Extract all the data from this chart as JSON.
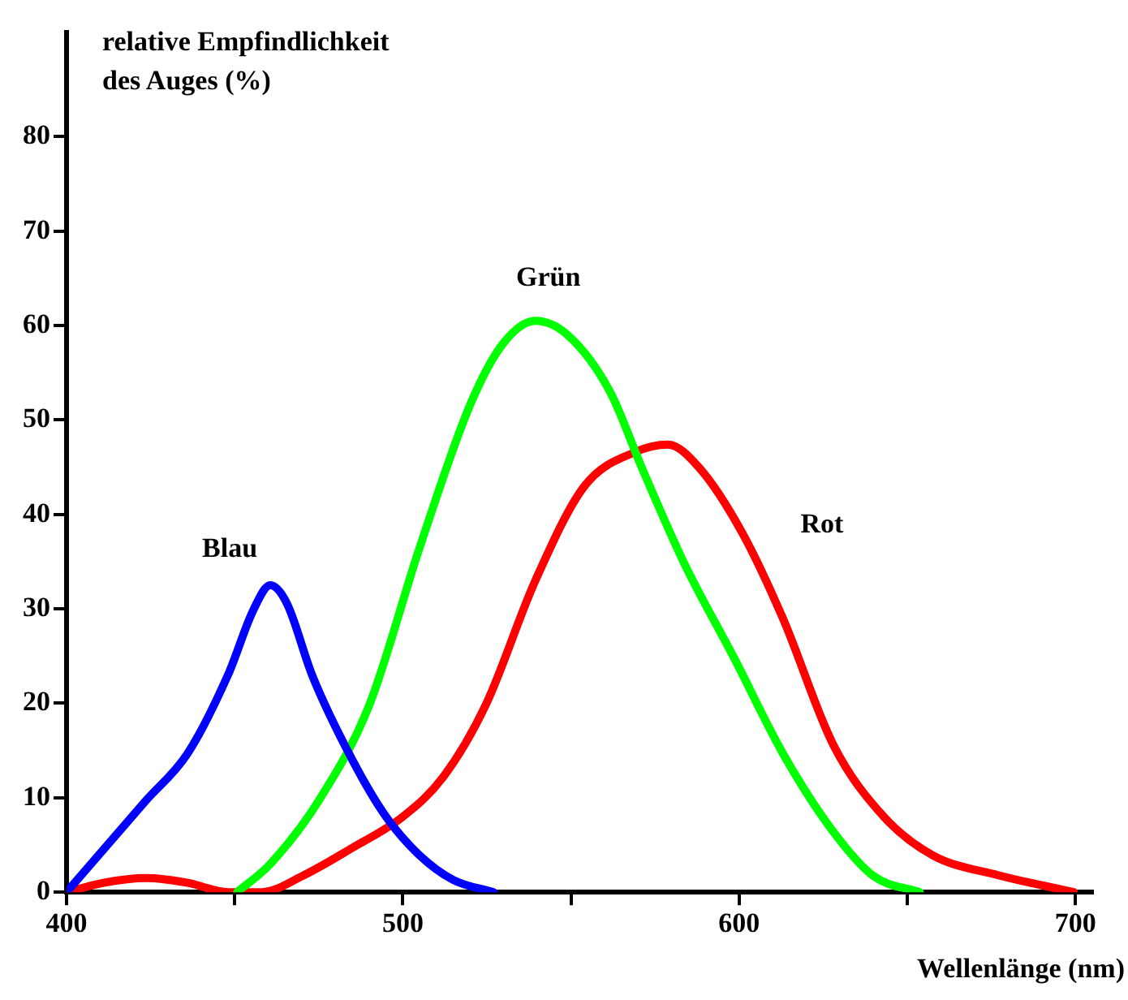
{
  "chart_data": {
    "type": "line",
    "ylabel": "relative Empfindlichkeit des Auges (%)",
    "xlabel": "Wellenlänge (nm)",
    "xlim": [
      400,
      705
    ],
    "ylim": [
      0,
      91
    ],
    "xticks": [
      400,
      {
        "value": 450,
        "label": null
      },
      500,
      {
        "value": 550,
        "label": null
      },
      600,
      {
        "value": 650,
        "label": null
      },
      700
    ],
    "yticks": [
      0,
      10,
      20,
      30,
      40,
      50,
      60,
      70,
      80
    ],
    "series": [
      {
        "name": "Blau",
        "color": "#0000ff",
        "x": [
          400,
          423.6,
          436,
          448,
          455.7,
          460.6,
          465.5,
          473,
          485,
          495,
          505,
          515,
          527
        ],
        "values": [
          0,
          9.7,
          14.7,
          23,
          30,
          32.5,
          30.6,
          23,
          14,
          8,
          3.9,
          1.3,
          0
        ]
      },
      {
        "name": "Grün",
        "color": "#00ff00",
        "x": [
          450.7,
          460.6,
          475,
          490,
          505,
          520,
          529.6,
          539.4,
          549,
          561.6,
          571,
          583.7,
          598.5,
          613,
          628,
          640,
          653.7
        ],
        "values": [
          0,
          3,
          9.7,
          19.8,
          36.5,
          51.6,
          58,
          60.5,
          59,
          53,
          45,
          34.8,
          24.8,
          14.7,
          6.4,
          1.7,
          0
        ]
      },
      {
        "name": "Rot",
        "color": "#ff0000",
        "x": [
          400,
          411,
          423.6,
          436,
          448,
          458,
          470,
          485,
          500,
          512,
          524.6,
          539.4,
          554,
          569,
          578.8,
          588,
          601,
          613,
          628,
          643,
          657.6,
          677,
          699.5
        ],
        "values": [
          0,
          1,
          1.5,
          1,
          0,
          0,
          1.7,
          4.7,
          8,
          12.2,
          19.8,
          33,
          43,
          46.6,
          47.4,
          45,
          38,
          29,
          15.6,
          8,
          3.9,
          1.8,
          0
        ]
      }
    ]
  }
}
